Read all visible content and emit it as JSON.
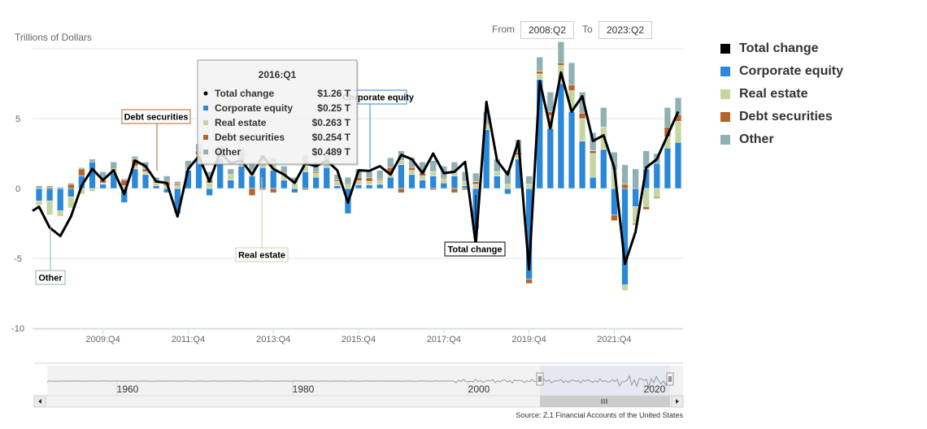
{
  "range": {
    "from_label": "From",
    "from_value": "2008:Q2",
    "to_label": "To",
    "to_value": "2023:Q2"
  },
  "source": "Source: Z.1 Financial Accounts of the United States",
  "legend": [
    {
      "name": "Total change",
      "color": "#000000"
    },
    {
      "name": "Corporate equity",
      "color": "#2b88d8"
    },
    {
      "name": "Real estate",
      "color": "#c5d5a0"
    },
    {
      "name": "Debt securities",
      "color": "#b5652a"
    },
    {
      "name": "Other",
      "color": "#8fb0b5"
    }
  ],
  "tooltip": {
    "title": "2016:Q1",
    "rows": [
      {
        "label": "Total change",
        "value": "$1.26 T",
        "color": "#000000"
      },
      {
        "label": "Corporate equity",
        "value": "$0.25 T",
        "color": "#2b88d8"
      },
      {
        "label": "Real estate",
        "value": "$0.263 T",
        "color": "#c5d5a0"
      },
      {
        "label": "Debt securities",
        "value": "$0.254 T",
        "color": "#b5652a"
      },
      {
        "label": "Other",
        "value": "$0.489 T",
        "color": "#8fb0b5"
      }
    ]
  },
  "annotations": {
    "debt": "Debt securities",
    "other": "Other",
    "real_estate": "Real estate",
    "total": "Total change",
    "equity": "Corporate equity"
  },
  "navigator": {
    "years": [
      "1960",
      "1980",
      "2000",
      "2020"
    ]
  },
  "chart_data": {
    "type": "bar",
    "stacked": true,
    "title": "",
    "ylabel": "Trillions of Dollars",
    "ylim": [
      -10,
      10
    ],
    "yticks": [
      "5",
      "0",
      "-5",
      "-10"
    ],
    "xtick_labels": [
      "2009:Q4",
      "2011:Q4",
      "2013:Q4",
      "2015:Q4",
      "2017:Q4",
      "2019:Q4",
      "2021:Q4"
    ],
    "categories": [
      "2008:Q2",
      "2008:Q3",
      "2008:Q4",
      "2009:Q1",
      "2009:Q2",
      "2009:Q3",
      "2009:Q4",
      "2010:Q1",
      "2010:Q2",
      "2010:Q3",
      "2010:Q4",
      "2011:Q1",
      "2011:Q2",
      "2011:Q3",
      "2011:Q4",
      "2012:Q1",
      "2012:Q2",
      "2012:Q3",
      "2012:Q4",
      "2013:Q1",
      "2013:Q2",
      "2013:Q3",
      "2013:Q4",
      "2014:Q1",
      "2014:Q2",
      "2014:Q3",
      "2014:Q4",
      "2015:Q1",
      "2015:Q2",
      "2015:Q3",
      "2015:Q4",
      "2016:Q1",
      "2016:Q2",
      "2016:Q3",
      "2016:Q4",
      "2017:Q1",
      "2017:Q2",
      "2017:Q3",
      "2017:Q4",
      "2018:Q1",
      "2018:Q2",
      "2018:Q3",
      "2018:Q4",
      "2019:Q1",
      "2019:Q2",
      "2019:Q3",
      "2019:Q4",
      "2020:Q1",
      "2020:Q2",
      "2020:Q3",
      "2020:Q4",
      "2021:Q1",
      "2021:Q2",
      "2021:Q3",
      "2021:Q4",
      "2022:Q1",
      "2022:Q2",
      "2022:Q3",
      "2022:Q4",
      "2023:Q1",
      "2023:Q2"
    ],
    "series": [
      {
        "name": "Corporate equity",
        "color": "#2b88d8",
        "values": [
          -0.9,
          -0.9,
          -1.6,
          -0.6,
          0.9,
          1.9,
          0.3,
          1.1,
          -1.0,
          1.4,
          1.0,
          0.2,
          -0.3,
          -1.8,
          1.3,
          2.1,
          -0.5,
          2.1,
          0.6,
          1.6,
          0.9,
          1.5,
          1.3,
          0.6,
          -0.3,
          1.2,
          0.8,
          1.5,
          0.2,
          -1.8,
          0.25,
          0.25,
          0.3,
          0.8,
          1.7,
          1.0,
          0.6,
          0.9,
          0.4,
          0.9,
          0.2,
          -2.9,
          4.2,
          0.9,
          -0.4,
          2.1,
          -6.5,
          7.8,
          4.3,
          7.5,
          5.5,
          3.4,
          0.8,
          2.8,
          -1.9,
          -6.9,
          -1.3,
          1.4,
          1.8,
          2.9,
          3.3
        ]
      },
      {
        "name": "Real estate",
        "color": "#c5d5a0",
        "values": [
          -0.3,
          -1.0,
          -0.4,
          -0.8,
          -0.4,
          -0.2,
          0.1,
          0.2,
          0.2,
          0.2,
          0.2,
          0.2,
          0.2,
          0.2,
          0.2,
          0.3,
          0.4,
          0.4,
          0.4,
          0.4,
          0.4,
          0.4,
          0.5,
          0.4,
          0.4,
          0.4,
          0.3,
          0.3,
          0.3,
          0.3,
          0.3,
          0.263,
          0.3,
          0.3,
          0.3,
          0.3,
          0.3,
          0.3,
          0.3,
          0.3,
          0.3,
          0.3,
          0.4,
          0.3,
          0.3,
          0.3,
          0.3,
          0.4,
          0.9,
          1.3,
          1.5,
          1.6,
          1.7,
          1.6,
          1.3,
          -0.4,
          -1.2,
          -1.3,
          -0.6,
          0.8,
          1.5
        ]
      },
      {
        "name": "Debt securities",
        "color": "#b5652a",
        "values": [
          0.0,
          0.1,
          0.0,
          0.3,
          0.5,
          0.0,
          0.2,
          0.1,
          0.4,
          0.5,
          0.2,
          0.1,
          0.3,
          0.1,
          0.1,
          0.3,
          0.2,
          0.2,
          0.0,
          0.1,
          -0.5,
          -0.1,
          -0.3,
          0.1,
          0.0,
          -0.1,
          0.1,
          0.0,
          0.1,
          0.1,
          0.25,
          0.254,
          0.1,
          0.4,
          -0.3,
          0.2,
          0.2,
          -0.1,
          0.1,
          -0.3,
          -0.1,
          0.2,
          0.1,
          0.0,
          0.0,
          0.2,
          -0.3,
          0.2,
          0.3,
          0.2,
          0.4,
          0.4,
          0.2,
          0.0,
          -0.4,
          0.3,
          -0.1,
          -0.2,
          -0.1,
          0.7,
          0.5
        ]
      },
      {
        "name": "Other",
        "color": "#8fb0b5",
        "values": [
          0.2,
          0.1,
          0.1,
          0.1,
          0.1,
          0.2,
          0.6,
          0.5,
          0.1,
          0.2,
          0.5,
          0.3,
          0.4,
          0.2,
          0.4,
          0.5,
          0.6,
          0.4,
          0.4,
          0.8,
          0.6,
          0.5,
          0.4,
          0.5,
          0.4,
          0.8,
          0.7,
          0.6,
          0.4,
          0.4,
          0.6,
          0.489,
          0.6,
          0.7,
          0.7,
          0.7,
          0.8,
          0.8,
          0.8,
          0.7,
          0.7,
          0.6,
          0.8,
          0.9,
          1.0,
          0.9,
          0.6,
          1.0,
          1.4,
          1.5,
          1.6,
          1.5,
          1.3,
          1.4,
          1.3,
          1.4,
          1.4,
          1.3,
          0.7,
          1.4,
          1.2
        ]
      }
    ],
    "total": [
      -1.3,
      -2.8,
      -3.4,
      -2.0,
      0.2,
      1.4,
      0.6,
      1.3,
      -0.4,
      2.0,
      1.6,
      0.5,
      0.4,
      -2.0,
      1.4,
      2.3,
      0.5,
      2.6,
      1.8,
      2.0,
      1.0,
      2.3,
      1.4,
      1.0,
      0.4,
      1.8,
      1.6,
      2.0,
      1.3,
      -1.0,
      1.3,
      1.26,
      1.6,
      1.0,
      2.4,
      2.1,
      1.1,
      2.5,
      1.1,
      1.2,
      1.9,
      -4.0,
      6.2,
      2.0,
      1.0,
      3.4,
      -5.8,
      7.7,
      4.3,
      8.3,
      5.5,
      6.6,
      3.4,
      3.8,
      1.5,
      -5.4,
      -3.1,
      1.5,
      2.1,
      3.8,
      5.5
    ],
    "annotations": [
      "Debt securities",
      "Other",
      "Real estate",
      "Total change",
      "Corporate equity"
    ]
  }
}
